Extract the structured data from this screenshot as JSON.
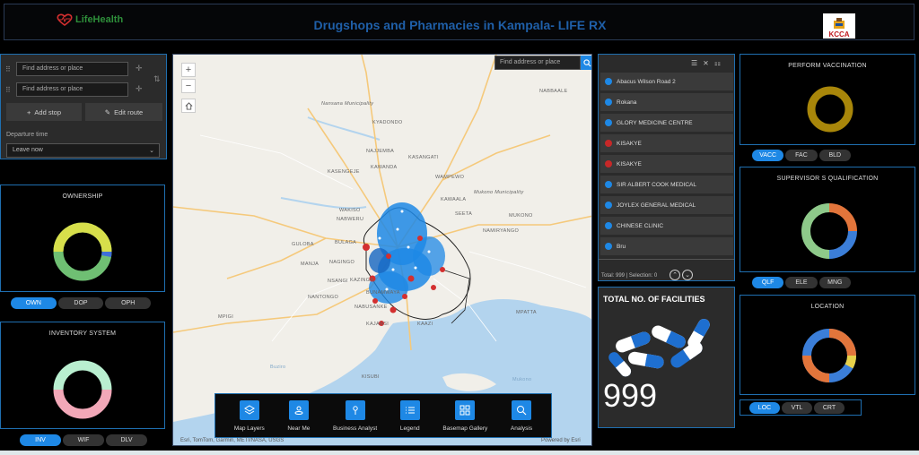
{
  "header": {
    "logo_text": "LifeHealth",
    "title": "Drugshops and Pharmacies in Kampala- LIFE RX",
    "kcca_logo_text": "KCCA"
  },
  "directions": {
    "stop1_placeholder": "Find address or place",
    "stop2_placeholder": "Find address or place",
    "add_stop": "Add stop",
    "edit_route": "Edit route",
    "departure_label": "Departure time",
    "departure_value": "Leave now"
  },
  "ownership": {
    "title": "OWNERSHIP",
    "tabs": [
      "OWN",
      "DOP",
      "OPH"
    ],
    "active_tab": 0
  },
  "inventory": {
    "title": "INVENTORY SYSTEM",
    "tabs": [
      "INV",
      "WIF",
      "DLV"
    ],
    "active_tab": 0
  },
  "map": {
    "search_placeholder": "Find address or place",
    "attribution": "Esri, TomTom, Garmin, METI/NASA, USGS",
    "powered_by": "Powered by Esri",
    "places": [
      "NABBAALE",
      "Nansana Municipality",
      "KYADONDO",
      "NAJJEMBA",
      "KASANGATI",
      "KAWANDA",
      "KASENGEJE",
      "WAMPEWO",
      "Mukono Municipality",
      "WAKISO",
      "NABWERU",
      "KAWAALA",
      "SEETA",
      "MUKONO",
      "NAMIRYANGO",
      "BULAGA",
      "GULOBA",
      "MANJA",
      "NAGINGO",
      "NSANGI",
      "KAZINGA",
      "BUNAMWAYA",
      "NANTONGO",
      "NABUSANKE",
      "MPATTA",
      "MPIGI",
      "KAJANSI",
      "KAAZI",
      "KISUBI",
      "Mukono",
      "Buziro"
    ],
    "tools": [
      {
        "label": "Map Layers",
        "icon": "layers-icon"
      },
      {
        "label": "Near Me",
        "icon": "near-me-icon"
      },
      {
        "label": "Business Analyst",
        "icon": "business-analyst-icon"
      },
      {
        "label": "Legend",
        "icon": "legend-icon"
      },
      {
        "label": "Basemap Gallery",
        "icon": "basemap-gallery-icon"
      },
      {
        "label": "Analysis",
        "icon": "analysis-icon"
      }
    ]
  },
  "facility_list": {
    "items": [
      {
        "name": "Abacus Wilson Road 2",
        "color": "#1e88e5"
      },
      {
        "name": "Rokana",
        "color": "#1e88e5"
      },
      {
        "name": "GLORY MEDICINE CENTRE",
        "color": "#1e88e5"
      },
      {
        "name": "KISAKYE",
        "color": "#c62828"
      },
      {
        "name": "KISAKYE",
        "color": "#c62828"
      },
      {
        "name": "SIR ALBERT COOK MEDICAL",
        "color": "#1e88e5"
      },
      {
        "name": "JOYLEX GENERAL MEDICAL",
        "color": "#1e88e5"
      },
      {
        "name": "CHINESE CLINIC",
        "color": "#1e88e5"
      },
      {
        "name": "Bru",
        "color": "#1e88e5"
      }
    ],
    "footer": "Total: 999 | Selection: 0"
  },
  "total": {
    "title": "TOTAL NO. OF FACILITIES",
    "value": "999"
  },
  "vaccination": {
    "title": "PERFORM VACCINATION",
    "tabs": [
      "VACC",
      "FAC",
      "BLD"
    ],
    "active_tab": 0
  },
  "supervisor": {
    "title": "SUPERVISOR S QUALIFICATION",
    "tabs": [
      "QLF",
      "ELE",
      "MNG"
    ],
    "active_tab": 0
  },
  "location": {
    "title": "LOCATION",
    "tabs": [
      "LOC",
      "VTL",
      "CRT"
    ],
    "active_tab": 0
  }
}
